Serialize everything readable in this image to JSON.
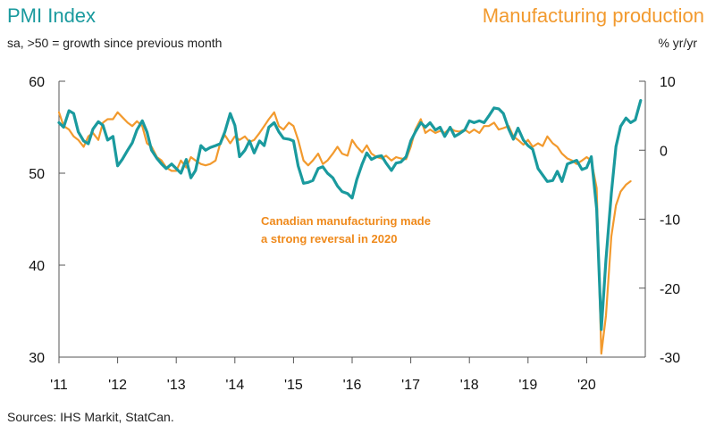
{
  "chart_data": {
    "type": "line",
    "title_left": "PMI Index",
    "title_right": "Manufacturing production",
    "subtitle_left": "sa, >50 = growth since previous month",
    "subtitle_right": "% yr/yr",
    "source": "Sources: IHS Markit, StatCan.",
    "annotation": [
      "Canadian manufacturing made",
      "a strong reversal in 2020"
    ],
    "x_tick_labels": [
      "'11",
      "'12",
      "'13",
      "'14",
      "'15",
      "'16",
      "'17",
      "'18",
      "'19",
      "'20"
    ],
    "x_range": [
      2011,
      2021
    ],
    "left_axis": {
      "range": [
        30,
        60
      ],
      "ticks": [
        "60",
        "50",
        "40",
        "30"
      ],
      "tick_values": [
        60,
        50,
        40,
        30
      ]
    },
    "right_axis": {
      "range": [
        -30,
        10
      ],
      "ticks": [
        "10",
        "0",
        "-10",
        "-20",
        "-30"
      ],
      "tick_values": [
        10,
        0,
        -10,
        -20,
        -30
      ]
    },
    "grid": false,
    "series": [
      {
        "name": "PMI Index",
        "axis": "left",
        "color": "#1a9a9e",
        "points": [
          [
            2011.0,
            55.5
          ],
          [
            2011.08,
            55.0
          ],
          [
            2011.17,
            56.8
          ],
          [
            2011.25,
            56.5
          ],
          [
            2011.33,
            54.5
          ],
          [
            2011.42,
            53.5
          ],
          [
            2011.5,
            53.2
          ],
          [
            2011.58,
            54.8
          ],
          [
            2011.67,
            55.6
          ],
          [
            2011.75,
            55.2
          ],
          [
            2011.83,
            53.6
          ],
          [
            2011.92,
            54.0
          ],
          [
            2012.0,
            50.8
          ],
          [
            2012.08,
            51.5
          ],
          [
            2012.17,
            52.5
          ],
          [
            2012.25,
            53.3
          ],
          [
            2012.33,
            54.7
          ],
          [
            2012.42,
            55.7
          ],
          [
            2012.5,
            54.5
          ],
          [
            2012.58,
            52.5
          ],
          [
            2012.67,
            51.6
          ],
          [
            2012.75,
            51.0
          ],
          [
            2012.83,
            50.5
          ],
          [
            2012.92,
            51.0
          ],
          [
            2013.0,
            50.5
          ],
          [
            2013.08,
            50.0
          ],
          [
            2013.17,
            51.5
          ],
          [
            2013.25,
            49.5
          ],
          [
            2013.33,
            50.3
          ],
          [
            2013.42,
            53.0
          ],
          [
            2013.5,
            52.5
          ],
          [
            2013.58,
            52.8
          ],
          [
            2013.67,
            53.0
          ],
          [
            2013.75,
            53.2
          ],
          [
            2013.83,
            54.5
          ],
          [
            2013.92,
            56.5
          ],
          [
            2014.0,
            55.2
          ],
          [
            2014.08,
            51.8
          ],
          [
            2014.17,
            52.5
          ],
          [
            2014.25,
            53.5
          ],
          [
            2014.33,
            52.2
          ],
          [
            2014.42,
            53.5
          ],
          [
            2014.5,
            53.0
          ],
          [
            2014.58,
            55.0
          ],
          [
            2014.67,
            55.5
          ],
          [
            2014.75,
            54.5
          ],
          [
            2014.83,
            53.8
          ],
          [
            2014.92,
            53.7
          ],
          [
            2015.0,
            53.5
          ],
          [
            2015.08,
            50.8
          ],
          [
            2015.17,
            48.9
          ],
          [
            2015.25,
            49.0
          ],
          [
            2015.33,
            49.2
          ],
          [
            2015.42,
            50.5
          ],
          [
            2015.5,
            50.7
          ],
          [
            2015.58,
            50.0
          ],
          [
            2015.67,
            49.5
          ],
          [
            2015.75,
            48.6
          ],
          [
            2015.83,
            48.0
          ],
          [
            2015.92,
            47.8
          ],
          [
            2016.0,
            47.3
          ],
          [
            2016.08,
            49.3
          ],
          [
            2016.17,
            51.0
          ],
          [
            2016.25,
            52.2
          ],
          [
            2016.33,
            51.5
          ],
          [
            2016.42,
            51.8
          ],
          [
            2016.5,
            51.9
          ],
          [
            2016.58,
            51.1
          ],
          [
            2016.67,
            50.3
          ],
          [
            2016.75,
            51.1
          ],
          [
            2016.83,
            51.2
          ],
          [
            2016.92,
            51.8
          ],
          [
            2017.0,
            53.5
          ],
          [
            2017.08,
            54.5
          ],
          [
            2017.17,
            55.5
          ],
          [
            2017.25,
            55.0
          ],
          [
            2017.33,
            55.5
          ],
          [
            2017.42,
            54.7
          ],
          [
            2017.5,
            55.0
          ],
          [
            2017.58,
            54.0
          ],
          [
            2017.67,
            55.0
          ],
          [
            2017.75,
            54.0
          ],
          [
            2017.83,
            54.3
          ],
          [
            2017.92,
            54.7
          ],
          [
            2018.0,
            55.7
          ],
          [
            2018.08,
            55.5
          ],
          [
            2018.17,
            55.7
          ],
          [
            2018.25,
            55.5
          ],
          [
            2018.33,
            56.2
          ],
          [
            2018.42,
            57.1
          ],
          [
            2018.5,
            57.0
          ],
          [
            2018.58,
            56.5
          ],
          [
            2018.67,
            54.8
          ],
          [
            2018.75,
            53.7
          ],
          [
            2018.83,
            54.9
          ],
          [
            2018.92,
            53.6
          ],
          [
            2019.0,
            53.0
          ],
          [
            2019.08,
            52.6
          ],
          [
            2019.17,
            50.5
          ],
          [
            2019.25,
            49.8
          ],
          [
            2019.33,
            49.1
          ],
          [
            2019.42,
            49.2
          ],
          [
            2019.5,
            50.2
          ],
          [
            2019.58,
            49.1
          ],
          [
            2019.67,
            51.0
          ],
          [
            2019.75,
            51.2
          ],
          [
            2019.83,
            51.4
          ],
          [
            2019.92,
            50.4
          ],
          [
            2020.0,
            50.6
          ],
          [
            2020.08,
            51.8
          ],
          [
            2020.17,
            46.1
          ],
          [
            2020.25,
            33.0
          ],
          [
            2020.33,
            40.6
          ],
          [
            2020.42,
            47.8
          ],
          [
            2020.5,
            52.9
          ],
          [
            2020.58,
            55.1
          ],
          [
            2020.67,
            56.0
          ],
          [
            2020.75,
            55.5
          ],
          [
            2020.83,
            55.8
          ],
          [
            2020.92,
            57.9
          ]
        ]
      },
      {
        "name": "Manufacturing production",
        "axis": "right",
        "color": "#f29a2e",
        "points": [
          [
            2011.0,
            5.5
          ],
          [
            2011.08,
            3.5
          ],
          [
            2011.17,
            3.0
          ],
          [
            2011.25,
            2.0
          ],
          [
            2011.33,
            1.5
          ],
          [
            2011.42,
            0.5
          ],
          [
            2011.5,
            2.0
          ],
          [
            2011.58,
            2.5
          ],
          [
            2011.67,
            1.5
          ],
          [
            2011.75,
            4.0
          ],
          [
            2011.83,
            4.5
          ],
          [
            2011.92,
            4.5
          ],
          [
            2012.0,
            5.5
          ],
          [
            2012.08,
            4.8
          ],
          [
            2012.17,
            4.0
          ],
          [
            2012.25,
            3.5
          ],
          [
            2012.33,
            4.2
          ],
          [
            2012.42,
            3.5
          ],
          [
            2012.5,
            1.0
          ],
          [
            2012.58,
            0.5
          ],
          [
            2012.67,
            -1.0
          ],
          [
            2012.75,
            -1.5
          ],
          [
            2012.83,
            -2.5
          ],
          [
            2012.92,
            -3.0
          ],
          [
            2013.0,
            -3.0
          ],
          [
            2013.08,
            -1.5
          ],
          [
            2013.17,
            -2.5
          ],
          [
            2013.25,
            -1.0
          ],
          [
            2013.33,
            -1.5
          ],
          [
            2013.42,
            -2.0
          ],
          [
            2013.5,
            -2.2
          ],
          [
            2013.58,
            -2.0
          ],
          [
            2013.67,
            -1.5
          ],
          [
            2013.75,
            1.0
          ],
          [
            2013.83,
            2.2
          ],
          [
            2013.92,
            1.0
          ],
          [
            2014.0,
            2.0
          ],
          [
            2014.08,
            1.5
          ],
          [
            2014.17,
            2.0
          ],
          [
            2014.25,
            1.2
          ],
          [
            2014.33,
            1.5
          ],
          [
            2014.42,
            2.5
          ],
          [
            2014.5,
            3.5
          ],
          [
            2014.58,
            4.5
          ],
          [
            2014.67,
            5.5
          ],
          [
            2014.75,
            3.5
          ],
          [
            2014.83,
            3.0
          ],
          [
            2014.92,
            4.0
          ],
          [
            2015.0,
            3.5
          ],
          [
            2015.08,
            1.5
          ],
          [
            2015.17,
            -1.5
          ],
          [
            2015.25,
            -2.2
          ],
          [
            2015.33,
            -1.5
          ],
          [
            2015.42,
            -0.5
          ],
          [
            2015.5,
            -2.0
          ],
          [
            2015.58,
            -1.5
          ],
          [
            2015.67,
            -0.5
          ],
          [
            2015.75,
            0.5
          ],
          [
            2015.83,
            -0.5
          ],
          [
            2015.92,
            -0.8
          ],
          [
            2016.0,
            1.5
          ],
          [
            2016.08,
            0.5
          ],
          [
            2016.17,
            -0.3
          ],
          [
            2016.25,
            0.7
          ],
          [
            2016.33,
            -0.5
          ],
          [
            2016.42,
            -1.0
          ],
          [
            2016.5,
            -1.2
          ],
          [
            2016.58,
            -0.8
          ],
          [
            2016.67,
            -1.5
          ],
          [
            2016.75,
            -1.0
          ],
          [
            2016.83,
            -1.2
          ],
          [
            2016.92,
            -1.3
          ],
          [
            2017.0,
            0.5
          ],
          [
            2017.08,
            3.0
          ],
          [
            2017.17,
            4.5
          ],
          [
            2017.25,
            2.5
          ],
          [
            2017.33,
            3.0
          ],
          [
            2017.42,
            2.5
          ],
          [
            2017.5,
            2.8
          ],
          [
            2017.58,
            2.5
          ],
          [
            2017.67,
            3.2
          ],
          [
            2017.75,
            2.8
          ],
          [
            2017.83,
            2.7
          ],
          [
            2017.92,
            3.0
          ],
          [
            2018.0,
            2.5
          ],
          [
            2018.08,
            3.0
          ],
          [
            2018.17,
            2.5
          ],
          [
            2018.25,
            3.5
          ],
          [
            2018.33,
            3.5
          ],
          [
            2018.42,
            4.0
          ],
          [
            2018.5,
            3.0
          ],
          [
            2018.58,
            3.2
          ],
          [
            2018.67,
            3.5
          ],
          [
            2018.75,
            2.0
          ],
          [
            2018.83,
            1.5
          ],
          [
            2018.92,
            0.8
          ],
          [
            2019.0,
            1.5
          ],
          [
            2019.08,
            0.5
          ],
          [
            2019.17,
            1.0
          ],
          [
            2019.25,
            0.6
          ],
          [
            2019.33,
            2.0
          ],
          [
            2019.42,
            1.0
          ],
          [
            2019.5,
            0.5
          ],
          [
            2019.58,
            -0.5
          ],
          [
            2019.67,
            -1.2
          ],
          [
            2019.75,
            -1.5
          ],
          [
            2019.83,
            -2.0
          ],
          [
            2019.92,
            -1.5
          ],
          [
            2020.0,
            -1.0
          ],
          [
            2020.08,
            -1.5
          ],
          [
            2020.17,
            -5.5
          ],
          [
            2020.25,
            -29.5
          ],
          [
            2020.33,
            -24.0
          ],
          [
            2020.42,
            -12.5
          ],
          [
            2020.5,
            -8.0
          ],
          [
            2020.58,
            -6.0
          ],
          [
            2020.67,
            -5.0
          ],
          [
            2020.75,
            -4.5
          ]
        ]
      }
    ]
  }
}
